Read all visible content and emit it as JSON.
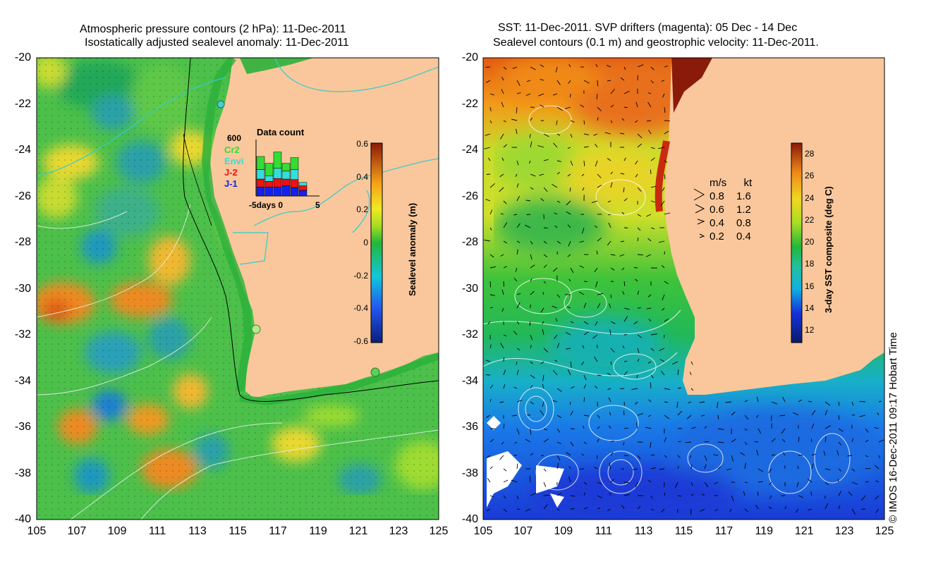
{
  "left_panel": {
    "title_line1": "Atmospheric pressure contours (2 hPa): 11-Dec-2011",
    "title_line2": "Isostatically adjusted sealevel anomaly: 11-Dec-2011",
    "y_ticks": [
      "-20",
      "-22",
      "-24",
      "-26",
      "-28",
      "-30",
      "-32",
      "-34",
      "-36",
      "-38",
      "-40"
    ],
    "x_ticks": [
      "105",
      "107",
      "109",
      "111",
      "113",
      "115",
      "117",
      "119",
      "121",
      "123",
      "125"
    ],
    "colorbar": {
      "label": "Sealevel anomaly (m)",
      "ticks": [
        "0.6",
        "0.4",
        "0.2",
        "0",
        "-0.2",
        "-0.4",
        "-0.6"
      ]
    },
    "data_count": {
      "title": "Data count",
      "max_label": "600",
      "x_label": "-5days 0",
      "x_label_right": "5",
      "legend": [
        {
          "name": "Cr2",
          "color": "#33dd33"
        },
        {
          "name": "Envi",
          "color": "#33dddd"
        },
        {
          "name": "J-2",
          "color": "#ee1111"
        },
        {
          "name": "J-1",
          "color": "#1122ee"
        }
      ],
      "bars": [
        {
          "j1": 0.16,
          "j2": 0.14,
          "envi": 0.17,
          "cr2": 0.23
        },
        {
          "j1": 0.16,
          "j2": 0.1,
          "envi": 0.1,
          "cr2": 0.22
        },
        {
          "j1": 0.16,
          "j2": 0.15,
          "envi": 0.18,
          "cr2": 0.29
        },
        {
          "j1": 0.18,
          "j2": 0.12,
          "envi": 0.14,
          "cr2": 0.14
        },
        {
          "j1": 0.15,
          "j2": 0.14,
          "envi": 0.18,
          "cr2": 0.21
        },
        {
          "j1": 0.1,
          "j2": 0.08,
          "envi": 0.06,
          "cr2": 0.0
        }
      ]
    }
  },
  "right_panel": {
    "title_line1": "SST: 11-Dec-2011. SVP drifters (magenta): 05 Dec - 14 Dec",
    "title_line2": "Sealevel contours (0.1 m) and geostrophic velocity: 11-Dec-2011.",
    "y_ticks": [
      "-20",
      "-22",
      "-24",
      "-26",
      "-28",
      "-30",
      "-32",
      "-34",
      "-36",
      "-38",
      "-40"
    ],
    "x_ticks": [
      "105",
      "107",
      "109",
      "111",
      "113",
      "115",
      "117",
      "119",
      "121",
      "123",
      "125"
    ],
    "colorbar": {
      "label": "3-day SST composite (deg C)",
      "ticks": [
        "28",
        "26",
        "24",
        "22",
        "20",
        "18",
        "16",
        "14",
        "12"
      ]
    },
    "velocity_legend": {
      "header_ms": "m/s",
      "header_kt": "kt",
      "rows": [
        {
          "ms": "0.8",
          "kt": "1.6"
        },
        {
          "ms": "0.6",
          "kt": "1.2"
        },
        {
          "ms": "0.4",
          "kt": "0.8"
        },
        {
          "ms": "0.2",
          "kt": "0.4"
        }
      ]
    }
  },
  "footer": "© IMOS 16-Dec-2011 09:17 Hobart Time"
}
